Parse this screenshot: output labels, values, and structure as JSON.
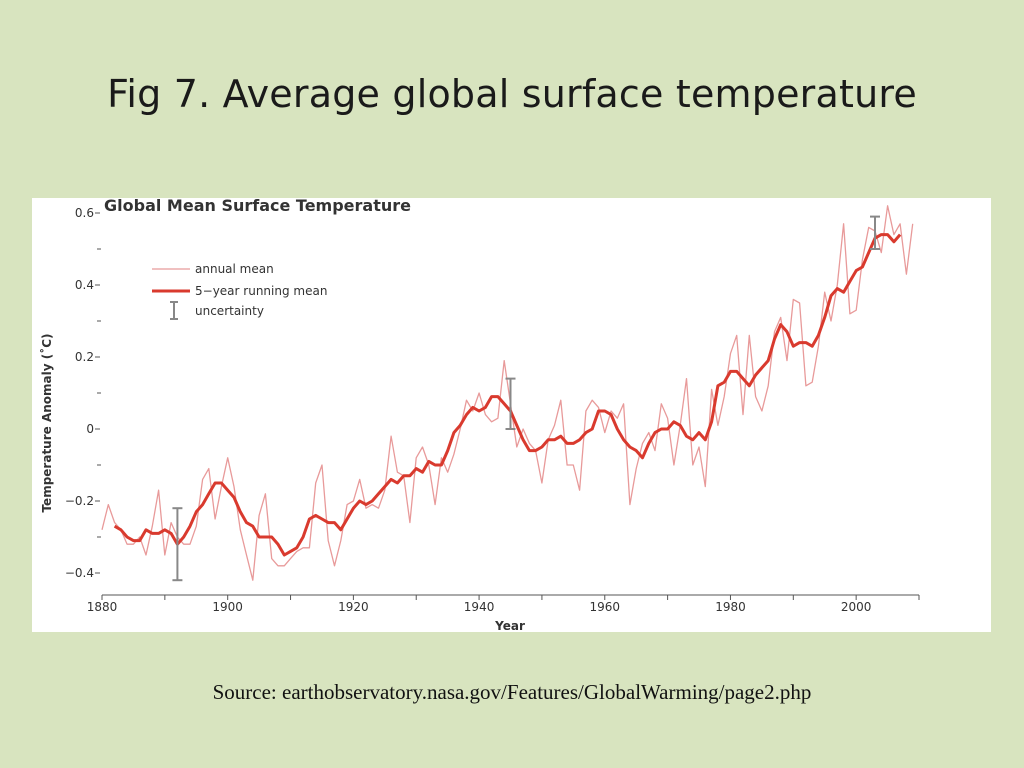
{
  "slide": {
    "title": "Fig 7. Average global surface temperature",
    "source": "Source: earthobservatory.nasa.gov/Features/GlobalWarming/page2.php"
  },
  "colors": {
    "background": "#d8e4bf",
    "annual": "#e89a9a",
    "running": "#d93a2e",
    "uncertainty": "#888888"
  },
  "chart_data": {
    "type": "line",
    "title": "Global Mean Surface Temperature",
    "xlabel": "Year",
    "ylabel": "Temperature Anomaly (˚C)",
    "xlim": [
      1880,
      2010
    ],
    "ylim": [
      -0.45,
      0.6
    ],
    "x_ticks": [
      "1880",
      "1900",
      "1920",
      "1940",
      "1960",
      "1980",
      "2000"
    ],
    "y_ticks": [
      "0.6",
      "0.4",
      "0.2",
      "0",
      "−0.2",
      "−0.4"
    ],
    "legend": {
      "position": "top-left",
      "annual": "annual mean",
      "running": "5−year running mean",
      "uncertainty": "uncertainty"
    },
    "series": [
      {
        "name": "annual mean",
        "x": [
          1880,
          1881,
          1882,
          1883,
          1884,
          1885,
          1886,
          1887,
          1888,
          1889,
          1890,
          1891,
          1892,
          1893,
          1894,
          1895,
          1896,
          1897,
          1898,
          1899,
          1900,
          1901,
          1902,
          1903,
          1904,
          1905,
          1906,
          1907,
          1908,
          1909,
          1910,
          1911,
          1912,
          1913,
          1914,
          1915,
          1916,
          1917,
          1918,
          1919,
          1920,
          1921,
          1922,
          1923,
          1924,
          1925,
          1926,
          1927,
          1928,
          1929,
          1930,
          1931,
          1932,
          1933,
          1934,
          1935,
          1936,
          1937,
          1938,
          1939,
          1940,
          1941,
          1942,
          1943,
          1944,
          1945,
          1946,
          1947,
          1948,
          1949,
          1950,
          1951,
          1952,
          1953,
          1954,
          1955,
          1956,
          1957,
          1958,
          1959,
          1960,
          1961,
          1962,
          1963,
          1964,
          1965,
          1966,
          1967,
          1968,
          1969,
          1970,
          1971,
          1972,
          1973,
          1974,
          1975,
          1976,
          1977,
          1978,
          1979,
          1980,
          1981,
          1982,
          1983,
          1984,
          1985,
          1986,
          1987,
          1988,
          1989,
          1990,
          1991,
          1992,
          1993,
          1994,
          1995,
          1996,
          1997,
          1998,
          1999,
          2000,
          2001,
          2002,
          2003,
          2004,
          2005,
          2006,
          2007,
          2008,
          2009
        ],
        "values": [
          -0.28,
          -0.21,
          -0.26,
          -0.28,
          -0.32,
          -0.32,
          -0.3,
          -0.35,
          -0.27,
          -0.17,
          -0.35,
          -0.26,
          -0.3,
          -0.32,
          -0.32,
          -0.27,
          -0.14,
          -0.11,
          -0.25,
          -0.16,
          -0.08,
          -0.16,
          -0.28,
          -0.35,
          -0.42,
          -0.24,
          -0.18,
          -0.36,
          -0.38,
          -0.38,
          -0.36,
          -0.34,
          -0.33,
          -0.33,
          -0.15,
          -0.1,
          -0.31,
          -0.38,
          -0.31,
          -0.21,
          -0.2,
          -0.14,
          -0.22,
          -0.21,
          -0.22,
          -0.17,
          -0.02,
          -0.12,
          -0.13,
          -0.26,
          -0.08,
          -0.05,
          -0.1,
          -0.21,
          -0.08,
          -0.12,
          -0.07,
          0.0,
          0.08,
          0.05,
          0.1,
          0.04,
          0.02,
          0.03,
          0.19,
          0.07,
          -0.05,
          0.0,
          -0.04,
          -0.06,
          -0.15,
          -0.03,
          0.01,
          0.08,
          -0.1,
          -0.1,
          -0.17,
          0.05,
          0.08,
          0.06,
          -0.01,
          0.05,
          0.03,
          0.07,
          -0.21,
          -0.11,
          -0.04,
          -0.01,
          -0.06,
          0.07,
          0.03,
          -0.1,
          0.01,
          0.14,
          -0.1,
          -0.05,
          -0.16,
          0.11,
          0.01,
          0.09,
          0.21,
          0.26,
          0.04,
          0.26,
          0.09,
          0.05,
          0.12,
          0.27,
          0.31,
          0.19,
          0.36,
          0.35,
          0.12,
          0.13,
          0.23,
          0.38,
          0.3,
          0.4,
          0.57,
          0.32,
          0.33,
          0.47,
          0.56,
          0.55,
          0.49,
          0.62,
          0.54,
          0.57,
          0.43,
          0.57
        ]
      },
      {
        "name": "5−year running mean",
        "x": [
          1882,
          1883,
          1884,
          1885,
          1886,
          1887,
          1888,
          1889,
          1890,
          1891,
          1892,
          1893,
          1894,
          1895,
          1896,
          1897,
          1898,
          1899,
          1900,
          1901,
          1902,
          1903,
          1904,
          1905,
          1906,
          1907,
          1908,
          1909,
          1910,
          1911,
          1912,
          1913,
          1914,
          1915,
          1916,
          1917,
          1918,
          1919,
          1920,
          1921,
          1922,
          1923,
          1924,
          1925,
          1926,
          1927,
          1928,
          1929,
          1930,
          1931,
          1932,
          1933,
          1934,
          1935,
          1936,
          1937,
          1938,
          1939,
          1940,
          1941,
          1942,
          1943,
          1944,
          1945,
          1946,
          1947,
          1948,
          1949,
          1950,
          1951,
          1952,
          1953,
          1954,
          1955,
          1956,
          1957,
          1958,
          1959,
          1960,
          1961,
          1962,
          1963,
          1964,
          1965,
          1966,
          1967,
          1968,
          1969,
          1970,
          1971,
          1972,
          1973,
          1974,
          1975,
          1976,
          1977,
          1978,
          1979,
          1980,
          1981,
          1982,
          1983,
          1984,
          1985,
          1986,
          1987,
          1988,
          1989,
          1990,
          1991,
          1992,
          1993,
          1994,
          1995,
          1996,
          1997,
          1998,
          1999,
          2000,
          2001,
          2002,
          2003,
          2004,
          2005,
          2006,
          2007
        ],
        "values": [
          -0.27,
          -0.28,
          -0.3,
          -0.31,
          -0.31,
          -0.28,
          -0.29,
          -0.29,
          -0.28,
          -0.29,
          -0.32,
          -0.3,
          -0.27,
          -0.23,
          -0.21,
          -0.18,
          -0.15,
          -0.15,
          -0.17,
          -0.19,
          -0.23,
          -0.26,
          -0.27,
          -0.3,
          -0.3,
          -0.3,
          -0.32,
          -0.35,
          -0.34,
          -0.33,
          -0.3,
          -0.25,
          -0.24,
          -0.25,
          -0.26,
          -0.26,
          -0.28,
          -0.25,
          -0.22,
          -0.2,
          -0.21,
          -0.2,
          -0.18,
          -0.16,
          -0.14,
          -0.15,
          -0.13,
          -0.13,
          -0.11,
          -0.12,
          -0.09,
          -0.1,
          -0.1,
          -0.06,
          -0.01,
          0.01,
          0.04,
          0.06,
          0.05,
          0.06,
          0.09,
          0.09,
          0.07,
          0.05,
          0.01,
          -0.03,
          -0.06,
          -0.06,
          -0.05,
          -0.03,
          -0.03,
          -0.02,
          -0.04,
          -0.04,
          -0.03,
          -0.01,
          0.0,
          0.05,
          0.05,
          0.04,
          0.0,
          -0.03,
          -0.05,
          -0.06,
          -0.08,
          -0.04,
          -0.01,
          0.0,
          0.0,
          0.02,
          0.01,
          -0.02,
          -0.03,
          -0.01,
          -0.03,
          0.02,
          0.12,
          0.13,
          0.16,
          0.16,
          0.14,
          0.12,
          0.15,
          0.17,
          0.19,
          0.25,
          0.29,
          0.27,
          0.23,
          0.24,
          0.24,
          0.23,
          0.26,
          0.31,
          0.37,
          0.39,
          0.38,
          0.41,
          0.44,
          0.45,
          0.49,
          0.53,
          0.54,
          0.54,
          0.52,
          0.54
        ]
      }
    ],
    "uncertainty": [
      {
        "x": 1892,
        "low": -0.42,
        "high": -0.22
      },
      {
        "x": 1945,
        "low": 0.0,
        "high": 0.14
      },
      {
        "x": 2003,
        "low": 0.5,
        "high": 0.59
      }
    ]
  }
}
